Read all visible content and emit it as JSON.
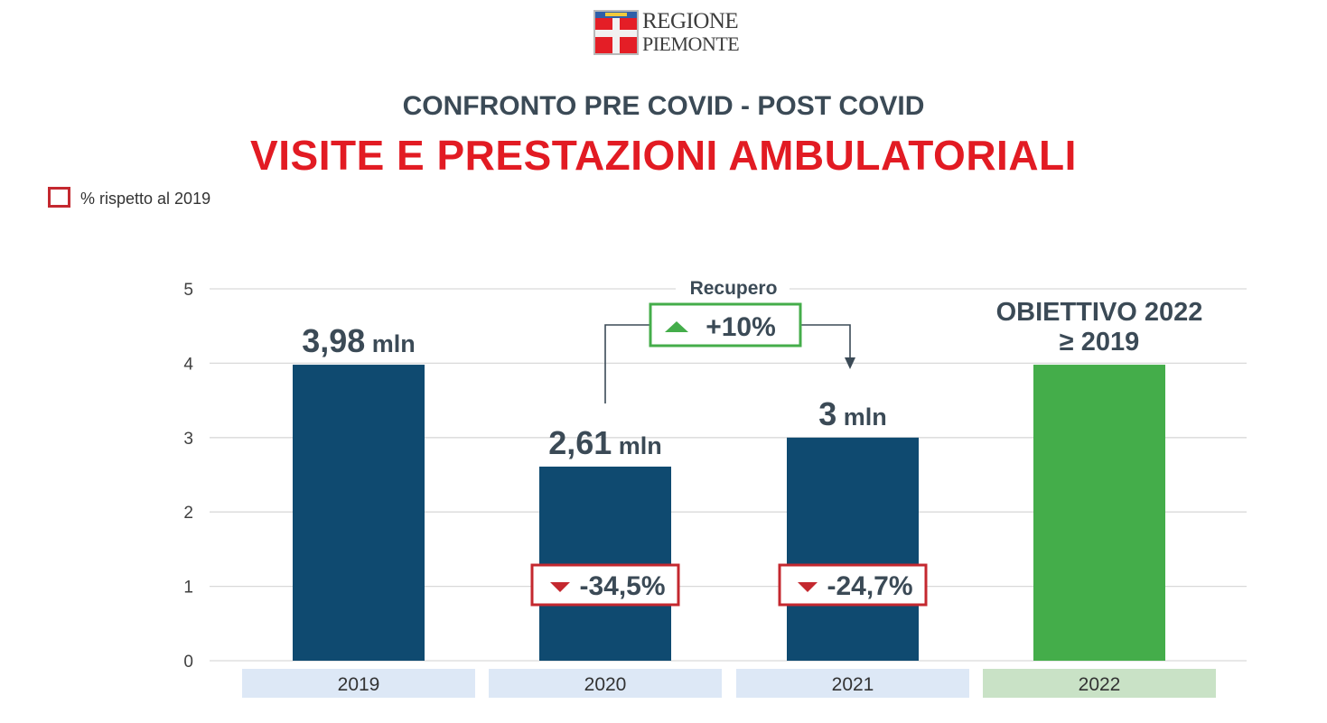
{
  "logo": {
    "line1": "REGIONE",
    "line2": "PIEMONTE"
  },
  "header": {
    "subtitle": "CONFRONTO PRE COVID - POST COVID",
    "title": "VISITE E PRESTAZIONI AMBULATORIALI"
  },
  "legend": {
    "label": "% rispetto al 2019",
    "color": "#c4282f"
  },
  "colors": {
    "bar": "#0f4a70",
    "target": "#44ad4a",
    "decline": "#c4282f",
    "recovery": "#44ad4a",
    "text": "#3b4a56"
  },
  "chart_data": {
    "type": "bar",
    "categories": [
      "2019",
      "2020",
      "2021",
      "2022"
    ],
    "values": [
      3.98,
      2.61,
      3,
      3.98
    ],
    "ylim": [
      0,
      5
    ],
    "yticks": [
      "0",
      "1",
      "2",
      "3",
      "4",
      "5"
    ],
    "grid": true,
    "bar_labels": [
      {
        "value": "3,98",
        "unit": "mln"
      },
      {
        "value": "2,61",
        "unit": "mln"
      },
      {
        "value": "3",
        "unit": "mln"
      },
      null
    ],
    "changes_vs_2019": [
      null,
      "-34,5%",
      "-24,7%",
      null
    ],
    "target": {
      "line1": "OBIETTIVO 2022",
      "line2": "≥ 2019"
    },
    "recovery": {
      "label": "Recupero",
      "value": "+10%",
      "from": "2020",
      "to": "2021"
    }
  }
}
